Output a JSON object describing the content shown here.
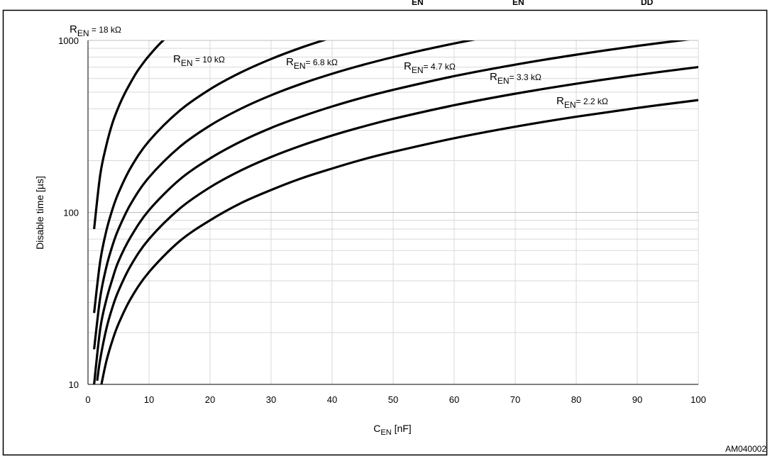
{
  "chart_data": {
    "type": "line",
    "title_partial": [
      "EN",
      "EN",
      "DD"
    ],
    "xlabel": {
      "main": "C",
      "sub": "EN",
      "unit": "  [nF]"
    },
    "ylabel": "Disable time [µs]",
    "figure_id": "AM040002",
    "x_scale": "linear",
    "y_scale": "log",
    "xlim": [
      0,
      100
    ],
    "ylim": [
      10,
      1000
    ],
    "x_ticks": [
      0,
      10,
      20,
      30,
      40,
      50,
      60,
      70,
      80,
      90,
      100
    ],
    "y_ticks": [
      10,
      100,
      1000
    ],
    "grid": true,
    "legend": "inline labels",
    "line_color": "#000000",
    "grid_color": "#d9d9d9",
    "series": [
      {
        "name": "18 kΩ",
        "label": {
          "main": "R",
          "sub": "EN",
          "rest": " = 18 kΩ"
        },
        "x": [
          1,
          2,
          3,
          4,
          5,
          6,
          7,
          8,
          9,
          10,
          12,
          15
        ],
        "y": [
          80,
          165,
          245,
          330,
          410,
          490,
          570,
          655,
          735,
          815,
          975,
          1220
        ]
      },
      {
        "name": "10 kΩ",
        "label": {
          "main": "R",
          "sub": "EN",
          "rest": " = 10 kΩ"
        },
        "x": [
          1,
          2,
          3,
          4,
          5,
          7,
          10,
          15,
          20,
          25,
          30,
          35,
          40
        ],
        "y": [
          26,
          52,
          78,
          104,
          130,
          182,
          260,
          390,
          520,
          650,
          780,
          910,
          1040
        ]
      },
      {
        "name": "6.8 kΩ",
        "label": {
          "main": "R",
          "sub": "EN",
          "rest": "= 6.8 kΩ"
        },
        "x": [
          1,
          2,
          3,
          4,
          5,
          7,
          10,
          15,
          20,
          25,
          30,
          35,
          40,
          45,
          50,
          55,
          60,
          65
        ],
        "y": [
          16,
          32,
          48,
          64,
          80,
          112,
          160,
          240,
          320,
          400,
          480,
          560,
          640,
          720,
          800,
          880,
          960,
          1040
        ]
      },
      {
        "name": "4.7 kΩ",
        "label": {
          "main": "R",
          "sub": "EN",
          "rest": "= 4.7 kΩ"
        },
        "x": [
          1,
          2,
          3,
          4,
          5,
          7,
          10,
          15,
          20,
          25,
          30,
          35,
          40,
          45,
          50,
          60,
          70,
          80,
          90,
          100
        ],
        "y": [
          10,
          21,
          31,
          41,
          52,
          72,
          103,
          155,
          206,
          258,
          310,
          361,
          413,
          465,
          516,
          620,
          723,
          826,
          929,
          1030
        ]
      },
      {
        "name": "3.3 kΩ",
        "label": {
          "main": "R",
          "sub": "EN",
          "rest": "= 3.3 kΩ"
        },
        "x": [
          1.5,
          2,
          3,
          4,
          5,
          7,
          10,
          15,
          20,
          25,
          30,
          35,
          40,
          45,
          50,
          60,
          70,
          80,
          90,
          100
        ],
        "y": [
          10.5,
          14,
          21,
          28,
          35,
          49,
          70,
          105,
          140,
          175,
          210,
          245,
          280,
          315,
          350,
          420,
          490,
          560,
          630,
          700
        ]
      },
      {
        "name": "2.2 kΩ",
        "label": {
          "main": "R",
          "sub": "EN",
          "rest": "= 2.2 kΩ"
        },
        "x": [
          2.2,
          3,
          4,
          5,
          7,
          10,
          15,
          20,
          25,
          30,
          35,
          40,
          45,
          50,
          60,
          70,
          80,
          90,
          100
        ],
        "y": [
          10,
          13.6,
          18,
          22.5,
          31.5,
          45,
          68,
          90,
          113,
          135,
          158,
          180,
          203,
          225,
          270,
          315,
          360,
          405,
          450
        ]
      }
    ]
  }
}
